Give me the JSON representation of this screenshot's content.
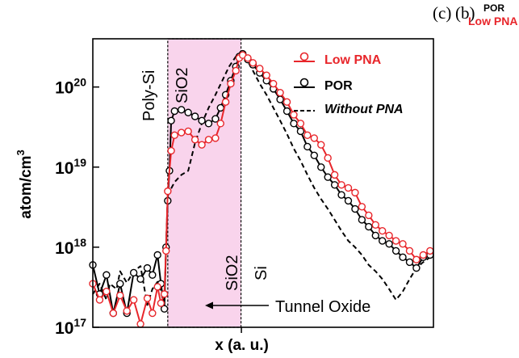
{
  "header": {
    "panel_c": "(c)",
    "panel_b": "(b)",
    "tag_por": "POR",
    "tag_low_pna": "Low PNA"
  },
  "chart_data": {
    "type": "line",
    "title": "",
    "xlabel": "x (a. u.)",
    "ylabel": "atom/cm",
    "ylabel_sup": "3",
    "yscale": "log",
    "xlim": [
      0,
      100
    ],
    "ylim": [
      1e+17,
      4e+20
    ],
    "yticks": [
      {
        "base": "10",
        "exp": "17",
        "value": 1e+17
      },
      {
        "base": "10",
        "exp": "18",
        "value": 1e+18
      },
      {
        "base": "10",
        "exp": "19",
        "value": 1e+19
      },
      {
        "base": "10",
        "exp": "20",
        "value": 1e+20
      }
    ],
    "grid": false,
    "legend_position": "top-right",
    "annotations": {
      "poly_si": "Poly-Si",
      "sio2_top": "SiO2",
      "sio2_bottom": "SiO2",
      "si": "Si",
      "tunnel_oxide": "Tunnel Oxide"
    },
    "tunnel_oxide_region": {
      "x_start": 22,
      "x_end": 43.5
    },
    "colors": {
      "low_pna": "#e8262b",
      "por": "#000000",
      "without_pna": "#000000",
      "region_fill": "#f9d4ec"
    },
    "series": [
      {
        "name": "Low PNA",
        "style": "solid-marker",
        "points": [
          [
            0,
            3.5e+17
          ],
          [
            2,
            2.2e+17
          ],
          [
            4,
            2.8e+17
          ],
          [
            6,
            1.5e+17
          ],
          [
            8,
            2.5e+17
          ],
          [
            10,
            1.6e+17
          ],
          [
            12,
            2.2e+17
          ],
          [
            14,
            1.1e+17
          ],
          [
            16,
            2.3e+17
          ],
          [
            17.5,
            1.5e+17
          ],
          [
            19,
            3.2e+17
          ],
          [
            20,
            2e+17
          ],
          [
            21,
            2.6e+17
          ],
          [
            21.5,
            9e+17
          ],
          [
            22,
            5e+18
          ],
          [
            23,
            1.6e+19
          ],
          [
            24,
            2.5e+19
          ],
          [
            26,
            2.7e+19
          ],
          [
            28,
            2.8e+19
          ],
          [
            30,
            2.2e+19
          ],
          [
            32,
            1.9e+19
          ],
          [
            34,
            2.2e+19
          ],
          [
            36,
            2.3e+19
          ],
          [
            37.5,
            3.5e+19
          ],
          [
            39,
            6.5e+19
          ],
          [
            40.5,
            1.1e+20
          ],
          [
            42,
            1.6e+20
          ],
          [
            43,
            2.3e+20
          ],
          [
            44,
            2.5e+20
          ],
          [
            45.5,
            2.3e+20
          ],
          [
            47,
            2e+20
          ],
          [
            49,
            1.7e+20
          ],
          [
            51,
            1.4e+20
          ],
          [
            53,
            1.1e+20
          ],
          [
            55,
            8.5e+19
          ],
          [
            57,
            6.5e+19
          ],
          [
            59,
            4.5e+19
          ],
          [
            61,
            3.5e+19
          ],
          [
            63,
            2.5e+19
          ],
          [
            65,
            2.3e+19
          ],
          [
            67,
            1.9e+19
          ],
          [
            69,
            1.3e+19
          ],
          [
            71,
            8e+18
          ],
          [
            73,
            6e+18
          ],
          [
            75,
            5.5e+18
          ],
          [
            77,
            4.8e+18
          ],
          [
            79,
            3.2e+18
          ],
          [
            81,
            2.5e+18
          ],
          [
            83,
            1.9e+18
          ],
          [
            85,
            1.6e+18
          ],
          [
            87,
            1.4e+18
          ],
          [
            89,
            1.2e+18
          ],
          [
            91,
            1.1e+18
          ],
          [
            93,
            9e+17
          ],
          [
            95,
            7e+17
          ],
          [
            97,
            8e+17
          ],
          [
            99,
            9e+17
          ]
        ]
      },
      {
        "name": "POR",
        "style": "solid-marker",
        "points": [
          [
            0,
            6e+17
          ],
          [
            2,
            2.6e+17
          ],
          [
            4,
            4.5e+17
          ],
          [
            6,
            1.5e+17
          ],
          [
            8,
            3.5e+17
          ],
          [
            10,
            1.5e+17
          ],
          [
            12,
            4.8e+17
          ],
          [
            14,
            4e+17
          ],
          [
            16,
            5.5e+17
          ],
          [
            17.5,
            4.5e+17
          ],
          [
            19,
            8e+17
          ],
          [
            20,
            3.5e+17
          ],
          [
            21,
            1.7e+17
          ],
          [
            21.5,
            1e+18
          ],
          [
            22,
            3.8e+18
          ],
          [
            22.5,
            9e+18
          ],
          [
            23,
            3.8e+19
          ],
          [
            24,
            5e+19
          ],
          [
            26,
            5.2e+19
          ],
          [
            28,
            4.8e+19
          ],
          [
            30,
            4.3e+19
          ],
          [
            32,
            3.8e+19
          ],
          [
            34,
            3.5e+19
          ],
          [
            36,
            4e+19
          ],
          [
            37.5,
            5.5e+19
          ],
          [
            39,
            8e+19
          ],
          [
            40.5,
            1.2e+20
          ],
          [
            42,
            1.8e+20
          ],
          [
            43,
            2.4e+20
          ],
          [
            44,
            2.6e+20
          ],
          [
            45.5,
            2.2e+20
          ],
          [
            47,
            1.9e+20
          ],
          [
            49,
            1.5e+20
          ],
          [
            51,
            1.2e+20
          ],
          [
            53,
            9.5e+19
          ],
          [
            55,
            7e+19
          ],
          [
            57,
            5e+19
          ],
          [
            59,
            3.5e+19
          ],
          [
            61,
            2.8e+19
          ],
          [
            63,
            1.8e+19
          ],
          [
            65,
            1.4e+19
          ],
          [
            67,
            1e+19
          ],
          [
            69,
            7.5e+18
          ],
          [
            71,
            6e+18
          ],
          [
            73,
            4.5e+18
          ],
          [
            75,
            3.8e+18
          ],
          [
            77,
            3e+18
          ],
          [
            79,
            2.2e+18
          ],
          [
            81,
            1.8e+18
          ],
          [
            83,
            1.4e+18
          ],
          [
            85,
            1.2e+18
          ],
          [
            87,
            1.1e+18
          ],
          [
            89,
            9e+17
          ],
          [
            91,
            7.5e+17
          ],
          [
            93,
            6.5e+17
          ],
          [
            95,
            5.5e+17
          ],
          [
            97,
            7.5e+17
          ],
          [
            99,
            8e+17
          ]
        ]
      },
      {
        "name": "Without PNA",
        "style": "dashed",
        "points": [
          [
            0,
            2.6e+17
          ],
          [
            2,
            3.5e+17
          ],
          [
            4,
            2.2e+17
          ],
          [
            5,
            3.5e+17
          ],
          [
            7,
            3e+17
          ],
          [
            8,
            5e+17
          ],
          [
            10,
            3.6e+17
          ],
          [
            12,
            5e+17
          ],
          [
            14,
            5.8e+17
          ],
          [
            16,
            1.9e+17
          ],
          [
            17.5,
            3e+17
          ],
          [
            19,
            3.7e+17
          ],
          [
            20,
            2.8e+17
          ],
          [
            21,
            1.9e+17
          ],
          [
            22,
            4.5e+18
          ],
          [
            24,
            6.5e+18
          ],
          [
            26,
            8e+18
          ],
          [
            28,
            9e+18
          ],
          [
            30,
            2e+19
          ],
          [
            32,
            3.5e+19
          ],
          [
            34,
            5.5e+19
          ],
          [
            36,
            8e+19
          ],
          [
            38,
            1.2e+20
          ],
          [
            40,
            1.8e+20
          ],
          [
            42,
            2.4e+20
          ],
          [
            43.5,
            2.7e+20
          ],
          [
            45,
            2.3e+20
          ],
          [
            47,
            1.6e+20
          ],
          [
            49,
            1.1e+20
          ],
          [
            51,
            8e+19
          ],
          [
            53,
            5.5e+19
          ],
          [
            55,
            3.8e+19
          ],
          [
            57,
            2.6e+19
          ],
          [
            59,
            1.7e+19
          ],
          [
            61,
            1.2e+19
          ],
          [
            63,
            8e+18
          ],
          [
            65,
            5.5e+18
          ],
          [
            67,
            4e+18
          ],
          [
            69,
            3e+18
          ],
          [
            71,
            2.2e+18
          ],
          [
            73,
            1.6e+18
          ],
          [
            75,
            1.2e+18
          ],
          [
            77,
            1e+18
          ],
          [
            79,
            8e+17
          ],
          [
            81,
            6e+17
          ],
          [
            83,
            5e+17
          ],
          [
            85,
            4e+17
          ],
          [
            87,
            3e+17
          ],
          [
            89,
            2.2e+17
          ],
          [
            91,
            2.8e+17
          ],
          [
            93,
            4e+17
          ],
          [
            95,
            5.5e+17
          ],
          [
            97,
            6.5e+17
          ],
          [
            99,
            7.5e+17
          ]
        ]
      }
    ]
  }
}
